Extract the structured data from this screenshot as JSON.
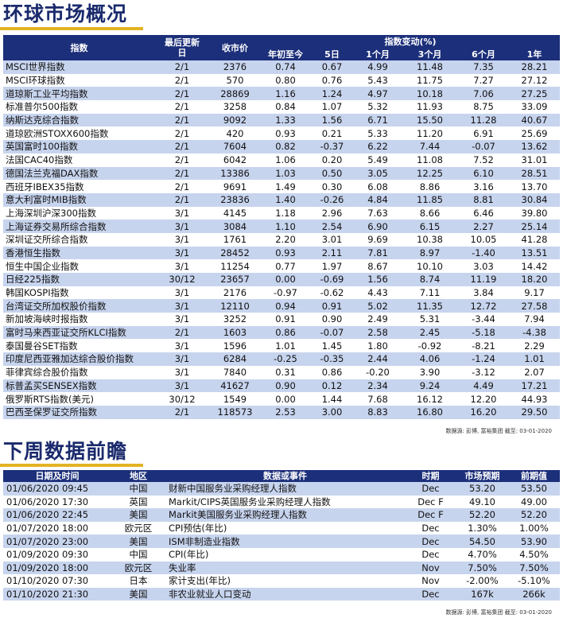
{
  "market": {
    "title": "环球市场概况",
    "headers": {
      "index": "指数",
      "last_update": "最后更新日",
      "price": "收市价",
      "change_group": "指数变动(%)",
      "periods": [
        "年初至今",
        "5日",
        "1个月",
        "3个月",
        "6个月",
        "1年"
      ]
    },
    "rows": [
      {
        "name": "MSCI世界指数",
        "date": "2/1",
        "price": "2376",
        "ytd": "0.74",
        "d5": "0.67",
        "m1": "4.99",
        "m3": "11.48",
        "m6": "7.35",
        "y1": "28.21"
      },
      {
        "name": "MSCI环球指数",
        "date": "2/1",
        "price": "570",
        "ytd": "0.80",
        "d5": "0.76",
        "m1": "5.43",
        "m3": "11.75",
        "m6": "7.27",
        "y1": "27.12"
      },
      {
        "name": "道琼斯工业平均指数",
        "date": "2/1",
        "price": "28869",
        "ytd": "1.16",
        "d5": "1.24",
        "m1": "4.97",
        "m3": "10.18",
        "m6": "7.06",
        "y1": "27.25"
      },
      {
        "name": "标准普尔500指数",
        "date": "2/1",
        "price": "3258",
        "ytd": "0.84",
        "d5": "1.07",
        "m1": "5.32",
        "m3": "11.93",
        "m6": "8.75",
        "y1": "33.09"
      },
      {
        "name": "纳斯达克综合指数",
        "date": "2/1",
        "price": "9092",
        "ytd": "1.33",
        "d5": "1.56",
        "m1": "6.71",
        "m3": "15.50",
        "m6": "11.28",
        "y1": "40.67"
      },
      {
        "name": "道琼欧洲STOXX600指数",
        "date": "2/1",
        "price": "420",
        "ytd": "0.93",
        "d5": "0.21",
        "m1": "5.33",
        "m3": "11.20",
        "m6": "6.91",
        "y1": "25.69"
      },
      {
        "name": "英国富时100指数",
        "date": "2/1",
        "price": "7604",
        "ytd": "0.82",
        "d5": "-0.37",
        "m1": "6.22",
        "m3": "7.44",
        "m6": "-0.07",
        "y1": "13.62"
      },
      {
        "name": "法国CAC40指数",
        "date": "2/1",
        "price": "6042",
        "ytd": "1.06",
        "d5": "0.20",
        "m1": "5.49",
        "m3": "11.08",
        "m6": "7.52",
        "y1": "31.01"
      },
      {
        "name": "德国法兰克福DAX指数",
        "date": "2/1",
        "price": "13386",
        "ytd": "1.03",
        "d5": "0.50",
        "m1": "3.05",
        "m3": "12.25",
        "m6": "6.10",
        "y1": "28.51"
      },
      {
        "name": "西班牙IBEX35指数",
        "date": "2/1",
        "price": "9691",
        "ytd": "1.49",
        "d5": "0.30",
        "m1": "6.08",
        "m3": "8.86",
        "m6": "3.16",
        "y1": "13.70"
      },
      {
        "name": "意大利富时MIB指数",
        "date": "2/1",
        "price": "23836",
        "ytd": "1.40",
        "d5": "-0.26",
        "m1": "4.84",
        "m3": "11.85",
        "m6": "8.81",
        "y1": "30.84"
      },
      {
        "name": "上海深圳沪深300指数",
        "date": "3/1",
        "price": "4145",
        "ytd": "1.18",
        "d5": "2.96",
        "m1": "7.63",
        "m3": "8.66",
        "m6": "6.46",
        "y1": "39.80"
      },
      {
        "name": "上海证券交易所综合指数",
        "date": "3/1",
        "price": "3084",
        "ytd": "1.10",
        "d5": "2.54",
        "m1": "6.90",
        "m3": "6.15",
        "m6": "2.27",
        "y1": "25.14"
      },
      {
        "name": "深圳证交所综合指数",
        "date": "3/1",
        "price": "1761",
        "ytd": "2.20",
        "d5": "3.01",
        "m1": "9.69",
        "m3": "10.38",
        "m6": "10.05",
        "y1": "41.28"
      },
      {
        "name": "香港恒生指数",
        "date": "3/1",
        "price": "28452",
        "ytd": "0.93",
        "d5": "2.11",
        "m1": "7.81",
        "m3": "8.97",
        "m6": "-1.40",
        "y1": "13.51"
      },
      {
        "name": "恒生中国企业指数",
        "date": "3/1",
        "price": "11254",
        "ytd": "0.77",
        "d5": "1.97",
        "m1": "8.67",
        "m3": "10.10",
        "m6": "3.03",
        "y1": "14.42"
      },
      {
        "name": "日经225指数",
        "date": "30/12",
        "price": "23657",
        "ytd": "0.00",
        "d5": "-0.69",
        "m1": "1.56",
        "m3": "8.74",
        "m6": "11.19",
        "y1": "18.20"
      },
      {
        "name": "韩国KOSPI指数",
        "date": "3/1",
        "price": "2176",
        "ytd": "-0.97",
        "d5": "-0.62",
        "m1": "4.43",
        "m3": "7.11",
        "m6": "3.84",
        "y1": "9.17"
      },
      {
        "name": "台湾证交所加权股价指数",
        "date": "3/1",
        "price": "12110",
        "ytd": "0.94",
        "d5": "0.91",
        "m1": "5.02",
        "m3": "11.35",
        "m6": "12.72",
        "y1": "27.58"
      },
      {
        "name": "新加坡海峡时报指数",
        "date": "3/1",
        "price": "3252",
        "ytd": "0.91",
        "d5": "0.90",
        "m1": "2.49",
        "m3": "5.31",
        "m6": "-3.44",
        "y1": "7.94"
      },
      {
        "name": "富时马来西亚证交所KLCI指数",
        "date": "2/1",
        "price": "1603",
        "ytd": "0.86",
        "d5": "-0.07",
        "m1": "2.58",
        "m3": "2.45",
        "m6": "-5.18",
        "y1": "-4.38"
      },
      {
        "name": "泰国曼谷SET指数",
        "date": "3/1",
        "price": "1596",
        "ytd": "1.01",
        "d5": "1.45",
        "m1": "1.80",
        "m3": "-0.92",
        "m6": "-8.21",
        "y1": "2.29"
      },
      {
        "name": "印度尼西亚雅加达综合股价指数",
        "date": "3/1",
        "price": "6284",
        "ytd": "-0.25",
        "d5": "-0.35",
        "m1": "2.44",
        "m3": "4.06",
        "m6": "-1.24",
        "y1": "1.01"
      },
      {
        "name": "菲律宾综合股价指数",
        "date": "3/1",
        "price": "7840",
        "ytd": "0.31",
        "d5": "0.86",
        "m1": "-0.20",
        "m3": "3.90",
        "m6": "-3.12",
        "y1": "2.07"
      },
      {
        "name": "标普孟买SENSEX指数",
        "date": "3/1",
        "price": "41627",
        "ytd": "0.90",
        "d5": "0.12",
        "m1": "2.34",
        "m3": "9.24",
        "m6": "4.49",
        "y1": "17.21"
      },
      {
        "name": "俄罗斯RTS指数(美元)",
        "date": "30/12",
        "price": "1549",
        "ytd": "0.00",
        "d5": "1.44",
        "m1": "7.68",
        "m3": "16.12",
        "m6": "12.20",
        "y1": "44.93"
      },
      {
        "name": "巴西圣保罗证交所指数",
        "date": "2/1",
        "price": "118573",
        "ytd": "2.53",
        "d5": "3.00",
        "m1": "8.83",
        "m3": "16.80",
        "m6": "16.20",
        "y1": "29.50"
      }
    ],
    "source": "数据源: 彭博, 富裕集团 截至: 03-01-2020"
  },
  "events": {
    "title": "下周数据前瞻",
    "headers": {
      "datetime": "日期及时间",
      "region": "地区",
      "event": "数据或事件",
      "period": "时期",
      "forecast": "市场预期",
      "previous": "前期值"
    },
    "rows": [
      {
        "datetime": "01/06/2020 09:45",
        "region": "中国",
        "event": "财新中国服务业采购经理人指数",
        "period": "Dec",
        "forecast": "53.20",
        "previous": "53.50"
      },
      {
        "datetime": "01/06/2020 17:30",
        "region": "英国",
        "event": "Markit/CIPS英国服务业采购经理人指数",
        "period": "Dec F",
        "forecast": "49.10",
        "previous": "49.00"
      },
      {
        "datetime": "01/06/2020 22:45",
        "region": "美国",
        "event": "Markit美国服务业采购经理人指数",
        "period": "Dec F",
        "forecast": "52.20",
        "previous": "52.20"
      },
      {
        "datetime": "01/07/2020 18:00",
        "region": "欧元区",
        "event": "CPI预估(年比)",
        "period": "Dec",
        "forecast": "1.30%",
        "previous": "1.00%"
      },
      {
        "datetime": "01/07/2020 23:00",
        "region": "美国",
        "event": "ISM非制造业指数",
        "period": "Dec",
        "forecast": "54.50",
        "previous": "53.90"
      },
      {
        "datetime": "01/09/2020 09:30",
        "region": "中国",
        "event": "CPI(年比)",
        "period": "Dec",
        "forecast": "4.70%",
        "previous": "4.50%"
      },
      {
        "datetime": "01/09/2020 18:00",
        "region": "欧元区",
        "event": "失业率",
        "period": "Nov",
        "forecast": "7.50%",
        "previous": "7.50%"
      },
      {
        "datetime": "01/10/2020 07:30",
        "region": "日本",
        "event": "家计支出(年比)",
        "period": "Nov",
        "forecast": "-2.00%",
        "previous": "-5.10%"
      },
      {
        "datetime": "01/10/2020 21:30",
        "region": "美国",
        "event": "非农业就业人口变动",
        "period": "Dec",
        "forecast": "167k",
        "previous": "266k"
      }
    ],
    "source": "数据源: 彭博, 富裕集团 截至: 03-01-2020"
  }
}
